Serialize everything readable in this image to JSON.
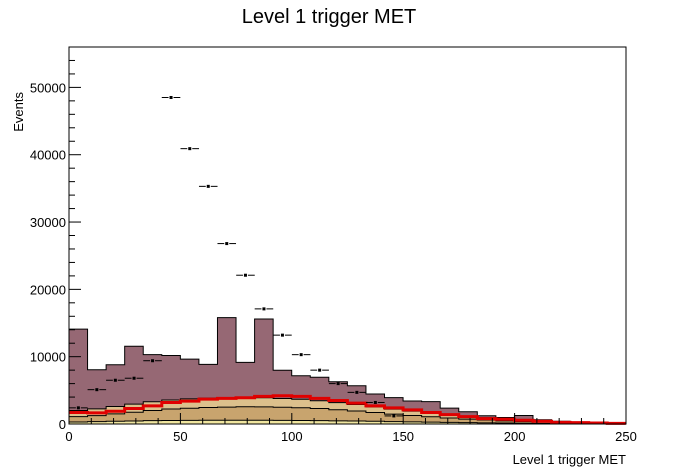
{
  "chart_data": {
    "type": "histogram",
    "title": "Level 1 trigger MET",
    "xlabel": "Level 1 trigger MET",
    "ylabel": "Events",
    "xlim": [
      0,
      250
    ],
    "ylim": [
      0,
      56000
    ],
    "bin_width": 8.33,
    "x_ticks": [
      0,
      50,
      100,
      150,
      200,
      250
    ],
    "y_ticks": [
      0,
      10000,
      20000,
      30000,
      40000,
      50000
    ],
    "y_tick_labels": [
      "0",
      "10000",
      "20000",
      "30000",
      "40000",
      "50000"
    ],
    "stack": [
      {
        "color": "#f0e6a0",
        "values": [
          300,
          350,
          400,
          450,
          500,
          520,
          540,
          550,
          560,
          560,
          550,
          540,
          520,
          500,
          470,
          440,
          400,
          360,
          320,
          280,
          240,
          200,
          170,
          140,
          110,
          80,
          60,
          40,
          30,
          20
        ]
      },
      {
        "color": "#c8a46e",
        "values": [
          800,
          900,
          1100,
          1300,
          1500,
          1700,
          1800,
          1900,
          1950,
          2000,
          2000,
          1950,
          1900,
          1800,
          1650,
          1500,
          1300,
          1100,
          950,
          800,
          650,
          520,
          420,
          320,
          250,
          190,
          140,
          100,
          80,
          60
        ]
      },
      {
        "color": "#dcc08c",
        "values": [
          900,
          1000,
          1100,
          1200,
          1300,
          1350,
          1400,
          1400,
          1400,
          1400,
          1350,
          1300,
          1250,
          1150,
          1050,
          950,
          850,
          750,
          650,
          550,
          470,
          400,
          330,
          260,
          210,
          160,
          120,
          90,
          70,
          50
        ]
      },
      {
        "color": "#966874",
        "values": [
          12100,
          5800,
          6200,
          8600,
          7000,
          6600,
          5900,
          5000,
          11900,
          5200,
          11700,
          4200,
          3500,
          3500,
          3100,
          2800,
          1900,
          1700,
          1500,
          1700,
          1000,
          700,
          300,
          250,
          700,
          200,
          80,
          40,
          20,
          10
        ]
      }
    ],
    "signal": {
      "color": "#e00000",
      "values": [
        1700,
        1650,
        1900,
        2300,
        2700,
        3200,
        3400,
        3700,
        3800,
        3900,
        4100,
        4200,
        4100,
        3800,
        3500,
        3100,
        2700,
        2400,
        2100,
        1700,
        1400,
        1100,
        800,
        700,
        550,
        400,
        250,
        200,
        150,
        100
      ]
    },
    "data_points": {
      "x": [
        4.2,
        12.5,
        20.8,
        29.2,
        37.5,
        45.8,
        54.2,
        62.5,
        70.8,
        79.2,
        87.5,
        95.8,
        104.2,
        112.5,
        120.8,
        129.2,
        137.5,
        145.8
      ],
      "y": [
        2400,
        5100,
        6500,
        6800,
        9400,
        48500,
        40900,
        35300,
        26800,
        22100,
        17100,
        13200,
        10300,
        8000,
        6000,
        4700,
        3200,
        1200
      ]
    }
  }
}
